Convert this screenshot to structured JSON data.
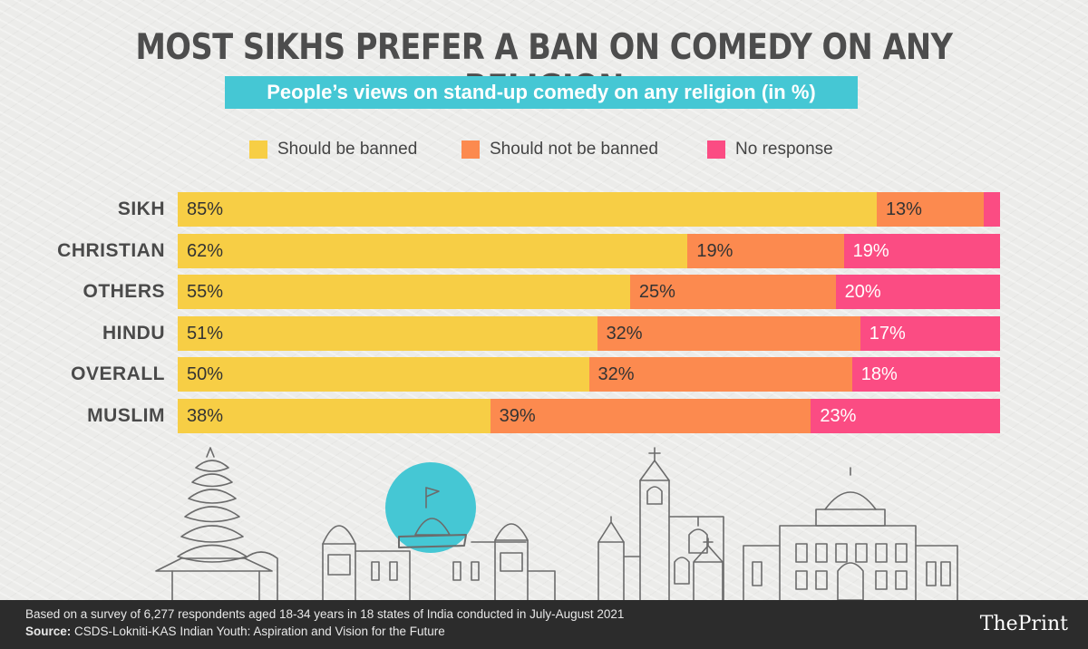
{
  "header": {
    "title": "MOST SIKHS PREFER A BAN ON COMEDY ON ANY RELIGION",
    "subtitle": "People’s views on stand-up comedy on any religion (in %)"
  },
  "colors": {
    "banned": "#f7ce45",
    "not_banned": "#fc8a4f",
    "no_response": "#fb4c83",
    "subtitle_bg": "#45c7d4"
  },
  "chart_data": {
    "type": "bar",
    "orientation": "horizontal",
    "stacked": true,
    "title": "MOST SIKHS PREFER A BAN ON COMEDY ON ANY RELIGION",
    "subtitle": "People’s views on stand-up comedy on any religion (in %)",
    "categories": [
      "SIKH",
      "CHRISTIAN",
      "OTHERS",
      "HINDU",
      "OVERALL",
      "MUSLIM"
    ],
    "series": [
      {
        "name": "Should be banned",
        "values": [
          85,
          62,
          55,
          51,
          50,
          38
        ],
        "labels": [
          "85%",
          "62%",
          "55%",
          "51%",
          "50%",
          "38%"
        ]
      },
      {
        "name": "Should not be banned",
        "values": [
          13,
          19,
          25,
          32,
          32,
          39
        ],
        "labels": [
          "13%",
          "19%",
          "25%",
          "32%",
          "32%",
          "39%"
        ]
      },
      {
        "name": "No response",
        "values": [
          2,
          19,
          20,
          17,
          18,
          23
        ],
        "labels": [
          "",
          "19%",
          "20%",
          "17%",
          "18%",
          "23%"
        ]
      }
    ],
    "xlim": [
      0,
      100
    ],
    "legend": "top",
    "grid": false
  },
  "footer": {
    "note": "Based on a survey of 6,277 respondents aged 18-34 years in 18 states of India conducted in July-August 2021",
    "source_label": "Source:",
    "source_text": "CSDS-Lokniti-KAS Indian Youth: Aspiration and Vision for the Future",
    "brand": "ThePrint"
  }
}
